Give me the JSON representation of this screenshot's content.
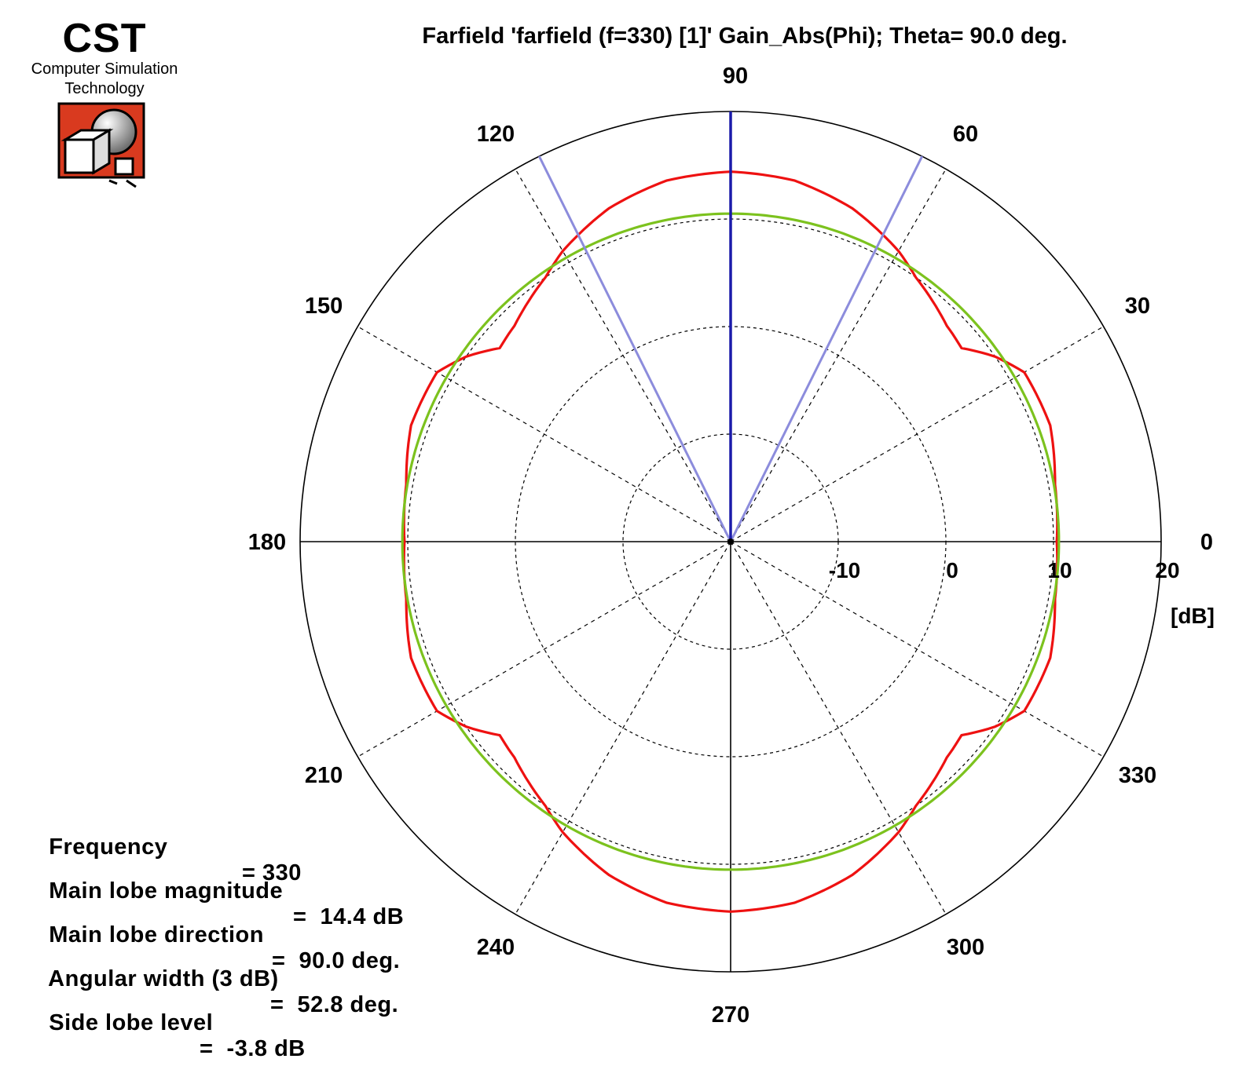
{
  "logo": {
    "name": "CST",
    "line1": "Computer Simulation",
    "line2": "Technology",
    "colors": {
      "frame": "#d93a1f",
      "cube": "#ffffff",
      "sphere": "#9a9a9a"
    }
  },
  "chart_data": {
    "type": "polar",
    "title": "Farfield 'farfield (f=330) [1]' Gain_Abs(Phi); Theta=  90.0 deg.",
    "angle_ticks": [
      0,
      30,
      60,
      90,
      120,
      150,
      180,
      210,
      240,
      270,
      300,
      330
    ],
    "angle_labels": [
      "0",
      "30",
      "60",
      "90",
      "120",
      "150",
      "180",
      "210",
      "240",
      "270",
      "300",
      "330"
    ],
    "radial_ticks": [
      -10,
      0,
      10,
      20
    ],
    "radial_labels": [
      "-10",
      "0",
      "10",
      "20"
    ],
    "radial_unit": "[dB]",
    "radial_range_db": [
      -20,
      20
    ],
    "grid": true,
    "series": [
      {
        "color": "#ee1111",
        "phi_deg": [
          0,
          10,
          20,
          30,
          35,
          40,
          45,
          50,
          55,
          60,
          70,
          80,
          90,
          100,
          110,
          120,
          125,
          130,
          135,
          140,
          145,
          150,
          160,
          170,
          180,
          190,
          200,
          210,
          215,
          220,
          225,
          230,
          235,
          240,
          250,
          260,
          270,
          280,
          290,
          300,
          305,
          310,
          315,
          320,
          325,
          330,
          340,
          350
        ],
        "gain_db": [
          10.3,
          10.6,
          11.6,
          11.5,
          10.0,
          8.0,
          8.4,
          9.2,
          10.0,
          11.2,
          13.0,
          14.1,
          14.4,
          14.1,
          13.0,
          11.2,
          10.0,
          9.2,
          8.4,
          8.0,
          10.0,
          11.5,
          11.6,
          10.6,
          10.3,
          10.6,
          11.6,
          11.5,
          10.0,
          8.0,
          8.4,
          9.2,
          10.0,
          11.2,
          13.0,
          14.1,
          14.4,
          14.1,
          13.0,
          11.2,
          10.0,
          9.2,
          8.4,
          8.0,
          10.0,
          11.5,
          11.6,
          10.6
        ]
      },
      {
        "color": "#7cc21e",
        "phi_deg": [
          0,
          90,
          180,
          270
        ],
        "gain_db": [
          10.5,
          10.5,
          10.5,
          10.5
        ]
      }
    ],
    "markers": {
      "main_lobe_deg": 90.0,
      "main_lobe_color": "#1a1aaa",
      "beamwidth_edges_deg": [
        63.6,
        116.4
      ],
      "beamwidth_color": "#8c8cdc"
    }
  },
  "summary": [
    {
      "label": "Frequency",
      "text": "= 330"
    },
    {
      "label": "Main lobe magnitude",
      "text": "=  14.4 dB"
    },
    {
      "label": "Main lobe direction",
      "text": "=  90.0 deg."
    },
    {
      "label": "Angular width (3 dB)",
      "text": "=  52.8 deg."
    },
    {
      "label": "Side lobe level",
      "text": "=  -3.8 dB"
    }
  ]
}
